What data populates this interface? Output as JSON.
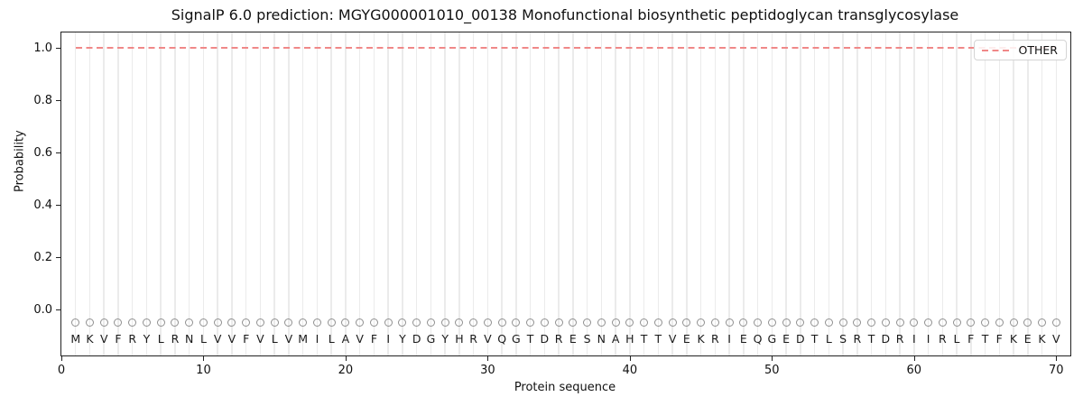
{
  "chart_data": {
    "type": "line",
    "title": "SignalP 6.0 prediction: MGYG000001010_00138 Monofunctional biosynthetic peptidoglycan transglycosylase",
    "xlabel": "Protein sequence",
    "ylabel": "Probability",
    "xlim": [
      0,
      71
    ],
    "ylim": [
      -0.175,
      1.06
    ],
    "x_ticks": [
      0,
      10,
      20,
      30,
      40,
      50,
      60,
      70
    ],
    "y_ticks": [
      "0.0",
      "0.2",
      "0.4",
      "0.6",
      "0.8",
      "1.0"
    ],
    "grid": "vertical gridline at every residue position 1-70",
    "legend_position": "upper right",
    "series": [
      {
        "name": "OTHER",
        "style": "dashed",
        "color": "#f08888",
        "x": [
          1,
          2,
          3,
          4,
          5,
          6,
          7,
          8,
          9,
          10,
          11,
          12,
          13,
          14,
          15,
          16,
          17,
          18,
          19,
          20,
          21,
          22,
          23,
          24,
          25,
          26,
          27,
          28,
          29,
          30,
          31,
          32,
          33,
          34,
          35,
          36,
          37,
          38,
          39,
          40,
          41,
          42,
          43,
          44,
          45,
          46,
          47,
          48,
          49,
          50,
          51,
          52,
          53,
          54,
          55,
          56,
          57,
          58,
          59,
          60,
          61,
          62,
          63,
          64,
          65,
          66,
          67,
          68,
          69,
          70
        ],
        "values": [
          1.0,
          1.0,
          1.0,
          1.0,
          1.0,
          1.0,
          1.0,
          1.0,
          1.0,
          1.0,
          1.0,
          1.0,
          1.0,
          1.0,
          1.0,
          1.0,
          1.0,
          1.0,
          1.0,
          1.0,
          1.0,
          1.0,
          1.0,
          1.0,
          1.0,
          1.0,
          1.0,
          1.0,
          1.0,
          1.0,
          1.0,
          1.0,
          1.0,
          1.0,
          1.0,
          1.0,
          1.0,
          1.0,
          1.0,
          1.0,
          1.0,
          1.0,
          1.0,
          1.0,
          1.0,
          1.0,
          1.0,
          1.0,
          1.0,
          1.0,
          1.0,
          1.0,
          1.0,
          1.0,
          1.0,
          1.0,
          1.0,
          1.0,
          1.0,
          1.0,
          1.0,
          1.0,
          1.0,
          1.0,
          1.0,
          1.0,
          1.0,
          1.0,
          1.0,
          1.0
        ]
      }
    ],
    "sequence": "MKVFRYLRNLVVFVLVMILAVFIYDGYHRVQGTDRESNAHTTVEKRIEQGEDTLSRTDRIIRLFTFKEKV",
    "residue_marker": {
      "shape": "open-circle",
      "color": "#909090",
      "y_position": -0.05
    }
  },
  "legend": {
    "other_label": "OTHER"
  },
  "colors": {
    "line": "#f08888",
    "grid": "#ebebeb",
    "marker": "#909090",
    "spine": "#222222",
    "background": "#ffffff"
  }
}
